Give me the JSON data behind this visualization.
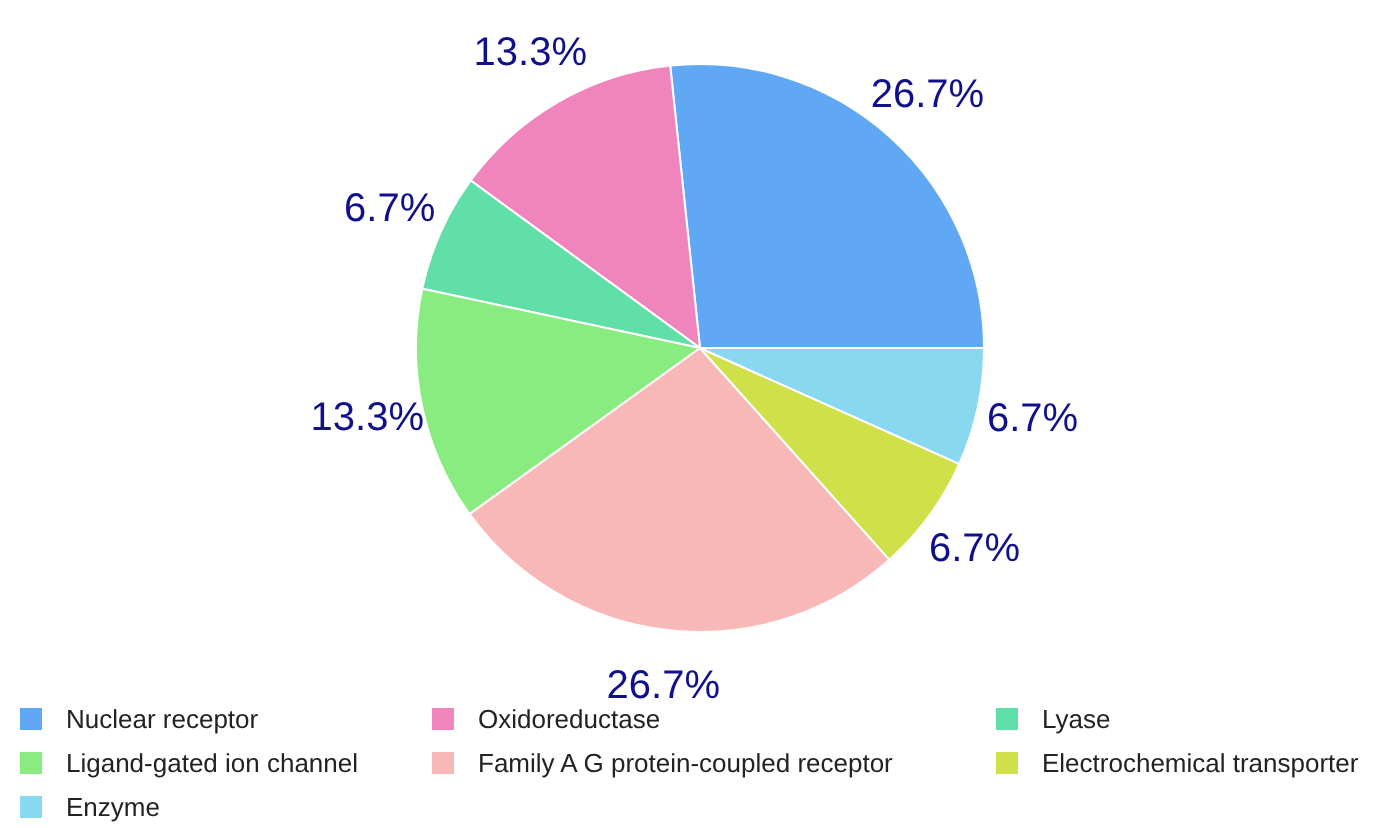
{
  "chart_data": {
    "type": "pie",
    "categories": [
      "Nuclear receptor",
      "Oxidoreductase",
      "Lyase",
      "Ligand-gated ion channel",
      "Family A G protein-coupled receptor",
      "Electrochemical transporter",
      "Enzyme"
    ],
    "values": [
      26.7,
      13.3,
      6.7,
      13.3,
      26.7,
      6.7,
      6.7
    ],
    "colors": [
      "#60a8f4",
      "#f084bc",
      "#60e0a8",
      "#88ec80",
      "#f8b8b8",
      "#d0e048",
      "#88d8f0"
    ],
    "value_labels": [
      "26.7%",
      "13.3%",
      "6.7%",
      "13.3%",
      "26.7%",
      "6.7%",
      "6.7%"
    ],
    "legend": "bottom"
  }
}
